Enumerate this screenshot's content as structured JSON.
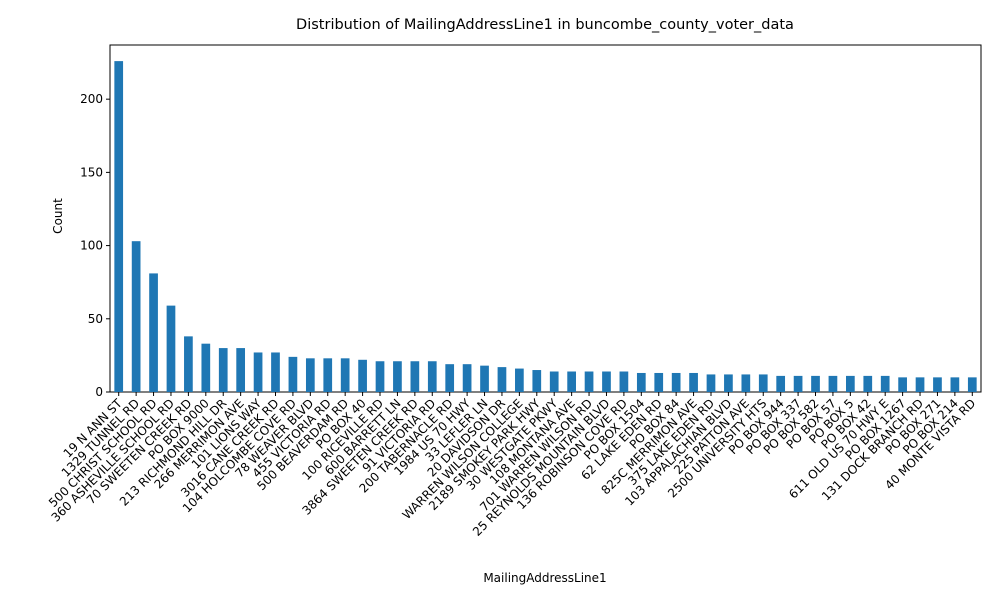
{
  "chart_data": {
    "type": "bar",
    "title": "Distribution of MailingAddressLine1 in buncombe_county_voter_data",
    "xlabel": "MailingAddressLine1",
    "ylabel": "Count",
    "ylim": [
      0,
      237
    ],
    "yticks": [
      0,
      50,
      100,
      150,
      200
    ],
    "grid": false,
    "bar_color": "#1f77b4",
    "categories": [
      "19 N ANN ST",
      "1329 TUNNEL RD",
      "500 CHRIST SCHOOL RD",
      "360 ASHEVILLE SCHOOL RD",
      "70 SWEETEN CREEK RD",
      "PO BOX 9000",
      "213 RICHMOND HILL DR",
      "266 MERRIMON AVE",
      "101 LIONS WAY",
      "3016 CANE CREEK RD",
      "104 HOLCOMBE COVE RD",
      "78 WEAVER BLVD",
      "455 VICTORIA RD",
      "500 BEAVERDAM RD",
      "PO BOX 40",
      "100 RICEVILLE RD",
      "600 BARRETT LN",
      "3864 SWEETEN CREEK RD",
      "91 VICTORIA RD",
      "200 TABERNACLE RD",
      "1984 US 70 HWY",
      "33 LEFLER LN",
      "20 DAVIDSON DR",
      "WARREN WILSON COLLEGE",
      "2189 SMOKEY PARK HWY",
      "30 WESTGATE PKWY",
      "108 MONTANA AVE",
      "701 WARREN WILSON RD",
      "25 REYNOLDS MOUNTAIN BLVD",
      "136 ROBINSON COVE RD",
      "PO BOX 1504",
      "62 LAKE EDEN RD",
      "PO BOX 84",
      "825C MERRIMON AVE",
      "375 LAKE EDEN RD",
      "103 APPALACHIAN BLVD",
      "225 PATTON AVE",
      "2500 UNIVERSITY HTS",
      "PO BOX 944",
      "PO BOX 337",
      "PO BOX 582",
      "PO BOX 57",
      "PO BOX 5",
      "PO BOX 42",
      "611 OLD US 70 HWY E",
      "PO BOX 1267",
      "131 DOCK BRANCH RD",
      "PO BOX 271",
      "PO BOX 214",
      "40 MONTE VISTA RD"
    ],
    "values": [
      226,
      103,
      81,
      59,
      38,
      33,
      30,
      30,
      27,
      27,
      24,
      23,
      23,
      23,
      22,
      21,
      21,
      21,
      21,
      19,
      19,
      18,
      17,
      16,
      15,
      14,
      14,
      14,
      14,
      14,
      13,
      13,
      13,
      13,
      12,
      12,
      12,
      12,
      11,
      11,
      11,
      11,
      11,
      11,
      11,
      10,
      10,
      10,
      10,
      10
    ]
  }
}
